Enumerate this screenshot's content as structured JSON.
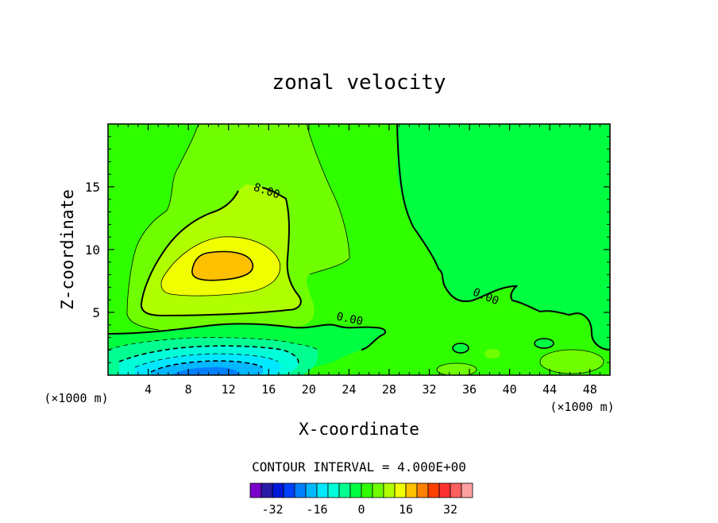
{
  "chart_data": {
    "type": "contour",
    "title": "zonal velocity",
    "xlabel": "X-coordinate",
    "ylabel": "Z-coordinate",
    "x_unit": "(×1000 m)",
    "xlim": [
      0,
      50
    ],
    "ylim": [
      0,
      20
    ],
    "x_ticks": [
      4,
      8,
      12,
      16,
      20,
      24,
      28,
      32,
      36,
      40,
      44,
      48
    ],
    "y_ticks": [
      5,
      10,
      15
    ],
    "contour_interval_text": "CONTOUR INTERVAL = 4.000E+00",
    "contour_labels": [
      {
        "text": "8.00",
        "x": 15.7,
        "y": 14.4
      },
      {
        "text": "0.00",
        "x": 24.0,
        "y": 4.2
      },
      {
        "text": "0.00",
        "x": 37.5,
        "y": 6.0
      }
    ],
    "features": {
      "jet_core_max": 24,
      "jet_core_center": {
        "x": 11.5,
        "y": 8.6
      },
      "negative_core_min": -24,
      "negative_core_center": {
        "x": 10,
        "y": 0.4
      }
    },
    "colorbar": {
      "levels": [
        -36,
        -32,
        -28,
        -24,
        -20,
        -16,
        -12,
        -8,
        -4,
        0,
        4,
        8,
        12,
        16,
        20,
        24,
        28,
        32,
        36
      ],
      "tick_labels": [
        "-32",
        "-16",
        "0",
        "16",
        "32"
      ],
      "colors": [
        "#7b00cc",
        "#2a1aa8",
        "#0018d8",
        "#0040ff",
        "#0080ff",
        "#00b8ff",
        "#00e8ff",
        "#00ffd8",
        "#00ff90",
        "#00ff40",
        "#30ff00",
        "#70ff00",
        "#b0ff00",
        "#f0ff00",
        "#ffc000",
        "#ff8000",
        "#ff4000",
        "#ff3030",
        "#ff6060",
        "#ffa0a0"
      ]
    }
  }
}
